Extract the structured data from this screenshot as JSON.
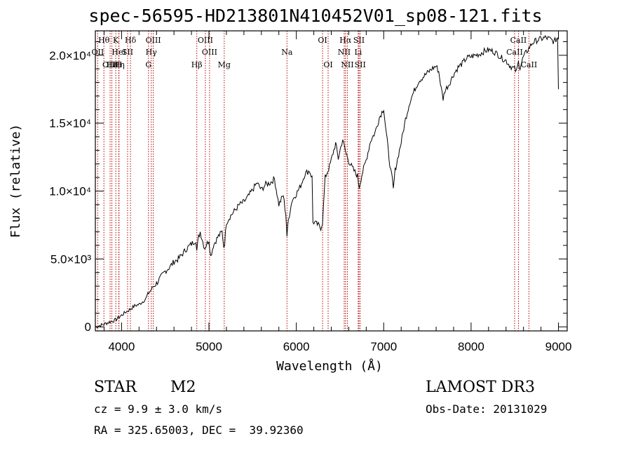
{
  "chart_data": {
    "type": "line",
    "title": "spec-56595-HD213801N410452V01_sp08-121.fits",
    "xlabel": "Wavelength (Å)",
    "ylabel": "Flux (relative)",
    "xlim": [
      3700,
      9100
    ],
    "ylim": [
      -300,
      21800
    ],
    "xticks": [
      {
        "value": 4000,
        "label": "4000"
      },
      {
        "value": 5000,
        "label": "5000"
      },
      {
        "value": 6000,
        "label": "6000"
      },
      {
        "value": 7000,
        "label": "7000"
      },
      {
        "value": 8000,
        "label": "8000"
      },
      {
        "value": 9000,
        "label": "9000"
      }
    ],
    "yticks": [
      {
        "value": 0,
        "label": "0"
      },
      {
        "value": 5000,
        "label": "5.0×10³"
      },
      {
        "value": 10000,
        "label": "1.0×10⁴"
      },
      {
        "value": 15000,
        "label": "1.5×10⁴"
      },
      {
        "value": 20000,
        "label": "2.0×10⁴"
      }
    ],
    "series": [
      {
        "name": "flux",
        "x": [
          3700,
          3780,
          3860,
          3930,
          3960,
          4000,
          4050,
          4100,
          4150,
          4200,
          4250,
          4280,
          4300,
          4330,
          4360,
          4400,
          4450,
          4500,
          4550,
          4600,
          4650,
          4700,
          4750,
          4800,
          4850,
          4861,
          4880,
          4900,
          4950,
          5000,
          5020,
          5050,
          5100,
          5150,
          5170,
          5180,
          5200,
          5250,
          5300,
          5350,
          5400,
          5450,
          5500,
          5550,
          5600,
          5650,
          5700,
          5750,
          5800,
          5850,
          5880,
          5893,
          5910,
          5950,
          6000,
          6050,
          6100,
          6150,
          6180,
          6190,
          6200,
          6250,
          6280,
          6300,
          6330,
          6380,
          6420,
          6450,
          6480,
          6500,
          6530,
          6563,
          6600,
          6650,
          6700,
          6720,
          6750,
          6800,
          6850,
          6900,
          6950,
          7000,
          7020,
          7050,
          7060,
          7080,
          7100,
          7110,
          7130,
          7200,
          7250,
          7300,
          7350,
          7400,
          7450,
          7500,
          7550,
          7600,
          7630,
          7660,
          7680,
          7700,
          7750,
          7800,
          7850,
          7900,
          7950,
          8000,
          8050,
          8100,
          8150,
          8200,
          8250,
          8300,
          8350,
          8400,
          8450,
          8498,
          8520,
          8542,
          8560,
          8600,
          8650,
          8700,
          8750,
          8800,
          8850,
          8900,
          8950,
          8990,
          9000
        ],
        "y": [
          0,
          150,
          350,
          500,
          650,
          850,
          1100,
          1300,
          1550,
          1650,
          1900,
          2100,
          2400,
          2650,
          2950,
          3200,
          3650,
          4100,
          4400,
          4800,
          5000,
          5400,
          5800,
          6100,
          6400,
          5600,
          6600,
          7000,
          5800,
          6400,
          5200,
          6000,
          6600,
          7000,
          5900,
          6200,
          7700,
          8200,
          8600,
          9000,
          9200,
          9600,
          10100,
          10600,
          10100,
          10500,
          10600,
          10900,
          9000,
          9700,
          8300,
          6700,
          7900,
          9300,
          9800,
          10400,
          11300,
          11500,
          11000,
          7700,
          7700,
          7500,
          7300,
          7700,
          11000,
          11800,
          12800,
          13500,
          12400,
          13000,
          13800,
          12900,
          12200,
          11600,
          11100,
          10300,
          11200,
          12300,
          13700,
          14300,
          15400,
          16100,
          14800,
          13100,
          12500,
          11500,
          10800,
          10100,
          11500,
          13600,
          15300,
          16600,
          17400,
          18100,
          18400,
          18700,
          19000,
          19200,
          18800,
          17500,
          16800,
          17400,
          17900,
          18600,
          19100,
          19400,
          19800,
          19900,
          20000,
          20100,
          20300,
          20400,
          20300,
          20100,
          19800,
          19600,
          19200,
          19000,
          18800,
          19500,
          19100,
          19900,
          20400,
          20900,
          21100,
          21200,
          21300,
          21200,
          21000,
          21300,
          17500
        ]
      }
    ],
    "line_markers": [
      {
        "label": "Hθ",
        "x": 3798,
        "row": 1
      },
      {
        "label": "OII",
        "x": 3727,
        "row": 2
      },
      {
        "label": "OIII",
        "x": 3869,
        "row": 3
      },
      {
        "label": "Hε",
        "x": 3889,
        "row": 3
      },
      {
        "label": "K",
        "x": 3934,
        "row": 1
      },
      {
        "label": "HeI",
        "x": 3970,
        "row": 2
      },
      {
        "label": "Hη",
        "x": 3970,
        "row": 3
      },
      {
        "label": "H",
        "x": 3968,
        "row": 3
      },
      {
        "label": "SII",
        "x": 4069,
        "row": 2
      },
      {
        "label": "Hδ",
        "x": 4102,
        "row": 1
      },
      {
        "label": "OIII",
        "x": 4363,
        "row": 1
      },
      {
        "label": "Hγ",
        "x": 4340,
        "row": 2
      },
      {
        "label": "G",
        "x": 4308,
        "row": 3
      },
      {
        "label": "Hβ",
        "x": 4861,
        "row": 3
      },
      {
        "label": "OIII",
        "x": 4959,
        "row": 1
      },
      {
        "label": "OIII",
        "x": 5007,
        "row": 2
      },
      {
        "label": "Mg",
        "x": 5175,
        "row": 3
      },
      {
        "label": "Na",
        "x": 5893,
        "row": 2
      },
      {
        "label": "OI",
        "x": 6300,
        "row": 1
      },
      {
        "label": "OI",
        "x": 6364,
        "row": 3
      },
      {
        "label": "Hα",
        "x": 6563,
        "row": 1
      },
      {
        "label": "NII",
        "x": 6548,
        "row": 2
      },
      {
        "label": "NII",
        "x": 6584,
        "row": 3
      },
      {
        "label": "SII",
        "x": 6717,
        "row": 1
      },
      {
        "label": "Li",
        "x": 6708,
        "row": 2
      },
      {
        "label": "SII",
        "x": 6731,
        "row": 3
      },
      {
        "label": "CaII",
        "x": 8542,
        "row": 1
      },
      {
        "label": "CaII",
        "x": 8498,
        "row": 2
      },
      {
        "label": "CaII",
        "x": 8662,
        "row": 3
      }
    ]
  },
  "annotations": {
    "object_type": "STAR",
    "subclass": "M2",
    "redshift": "cz = 9.9 ± 3.0 km/s",
    "coordinates": "RA = 325.65003, DEC =  39.92360",
    "survey": "LAMOST DR3",
    "obs_date": "Obs-Date: 20131029"
  },
  "colors": {
    "line": "#000000",
    "marker": "#b00000",
    "background": "#ffffff"
  }
}
